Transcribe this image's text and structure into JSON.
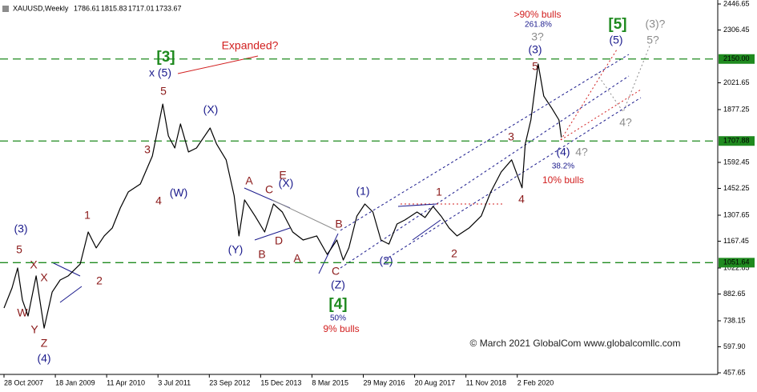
{
  "chart_data": {
    "type": "line",
    "symbol": "XAUUSD,Weekly",
    "ohlc": [
      1786.61,
      1815.83,
      1717.01,
      1733.67
    ],
    "color": "#000000",
    "x": [
      "2007-10-28",
      "2008-01-06",
      "2008-02-24",
      "2008-04-06",
      "2008-05-25",
      "2008-08-03",
      "2008-10-12",
      "2008-12-21",
      "2009-03-01",
      "2009-05-10",
      "2009-08-23",
      "2009-11-01",
      "2010-01-10",
      "2010-03-21",
      "2010-05-30",
      "2010-08-08",
      "2010-10-17",
      "2011-01-30",
      "2011-05-15",
      "2011-08-14",
      "2011-10-02",
      "2011-11-27",
      "2012-01-15",
      "2012-03-25",
      "2012-06-03",
      "2012-09-30",
      "2012-11-25",
      "2013-02-17",
      "2013-04-28",
      "2013-06-09",
      "2013-07-28",
      "2013-10-27",
      "2014-01-19",
      "2014-04-06",
      "2014-06-22",
      "2014-09-21",
      "2014-12-21",
      "2015-04-19",
      "2015-07-19",
      "2015-10-11",
      "2015-12-06",
      "2016-01-24",
      "2016-04-03",
      "2016-06-12",
      "2016-08-21",
      "2016-10-30",
      "2017-01-08",
      "2017-03-19",
      "2017-05-28",
      "2017-09-10",
      "2017-11-19",
      "2018-01-28",
      "2018-04-08",
      "2018-06-17",
      "2018-08-26",
      "2018-12-09",
      "2019-03-24",
      "2019-06-16",
      "2019-09-15",
      "2019-12-15",
      "2020-03-15",
      "2020-04-12",
      "2020-05-31",
      "2020-08-02",
      "2020-09-20",
      "2020-11-29",
      "2021-01-31",
      "2021-02-21"
    ],
    "values": [
      807,
      915,
      1023,
      850,
      764,
      980,
      699,
      893,
      958,
      980,
      1044,
      1217,
      1131,
      1196,
      1239,
      1347,
      1433,
      1476,
      1627,
      1907,
      1735,
      1670,
      1800,
      1649,
      1670,
      1778,
      1692,
      1606,
      1412,
      1196,
      1390,
      1303,
      1217,
      1368,
      1325,
      1217,
      1174,
      1196,
      1096,
      1174,
      1066,
      1131,
      1303,
      1368,
      1325,
      1174,
      1152,
      1260,
      1282,
      1325,
      1295,
      1355,
      1303,
      1239,
      1196,
      1239,
      1303,
      1433,
      1541,
      1606,
      1455,
      1692,
      1821,
      2123,
      1950,
      1885,
      1821,
      1727
    ],
    "xlim": [
      "2007-09-23",
      "2024-11-10"
    ],
    "xticks": [
      {
        "value": "2007-10-28",
        "label": "28 Oct 2007"
      },
      {
        "value": "2009-01-18",
        "label": "18 Jan 2009"
      },
      {
        "value": "2010-04-11",
        "label": "11 Apr 2010"
      },
      {
        "value": "2011-07-03",
        "label": "3 Jul 2011"
      },
      {
        "value": "2012-09-23",
        "label": "23 Sep 2012"
      },
      {
        "value": "2013-12-15",
        "label": "15 Dec 2013"
      },
      {
        "value": "2015-03-08",
        "label": "8 Mar 2015"
      },
      {
        "value": "2016-05-29",
        "label": "29 May 2016"
      },
      {
        "value": "2017-08-20",
        "label": "20 Aug 2017"
      },
      {
        "value": "2018-11-11",
        "label": "11 Nov 2018"
      },
      {
        "value": "2020-02-02",
        "label": "2 Feb 2020"
      }
    ],
    "ylim": [
      457.65,
      2446.65
    ],
    "yticks": [
      2446.65,
      2306.45,
      2021.65,
      1877.25,
      1592.45,
      1452.25,
      1307.65,
      1167.45,
      1022.85,
      882.65,
      738.15,
      {
        "value": 597.9,
        "label": "597.90"
      },
      457.65
    ],
    "hlines": [
      {
        "value": 2150,
        "label": "2150.00"
      },
      1707.88,
      1051.64
    ],
    "hline_color": "#1f8a1f",
    "annotations": [
      "(3)",
      "5",
      "X",
      "X",
      "W",
      "Y",
      "Z",
      "(4)",
      "1",
      "2",
      "3",
      "4",
      "(W)",
      "5",
      "x (5)",
      "[3]",
      "Expanded?",
      "(X)",
      "A",
      "C",
      "(X)",
      "E",
      "D",
      "B",
      "A",
      "(Y)",
      "B",
      "C",
      "(Z)",
      "[4]",
      "50%",
      "9% bulls",
      "(1)",
      "1",
      "(2)",
      "2",
      "3",
      "4",
      "5",
      "(3)",
      "3?",
      "261.8%",
      ">90% bulls",
      "[5]",
      "(5)",
      "(3)?",
      "5?",
      "4?",
      "(4)",
      "4?",
      "38.2%",
      "10% bulls",
      "© March 2021 GlobalCom www.globalcomllc.com"
    ]
  }
}
